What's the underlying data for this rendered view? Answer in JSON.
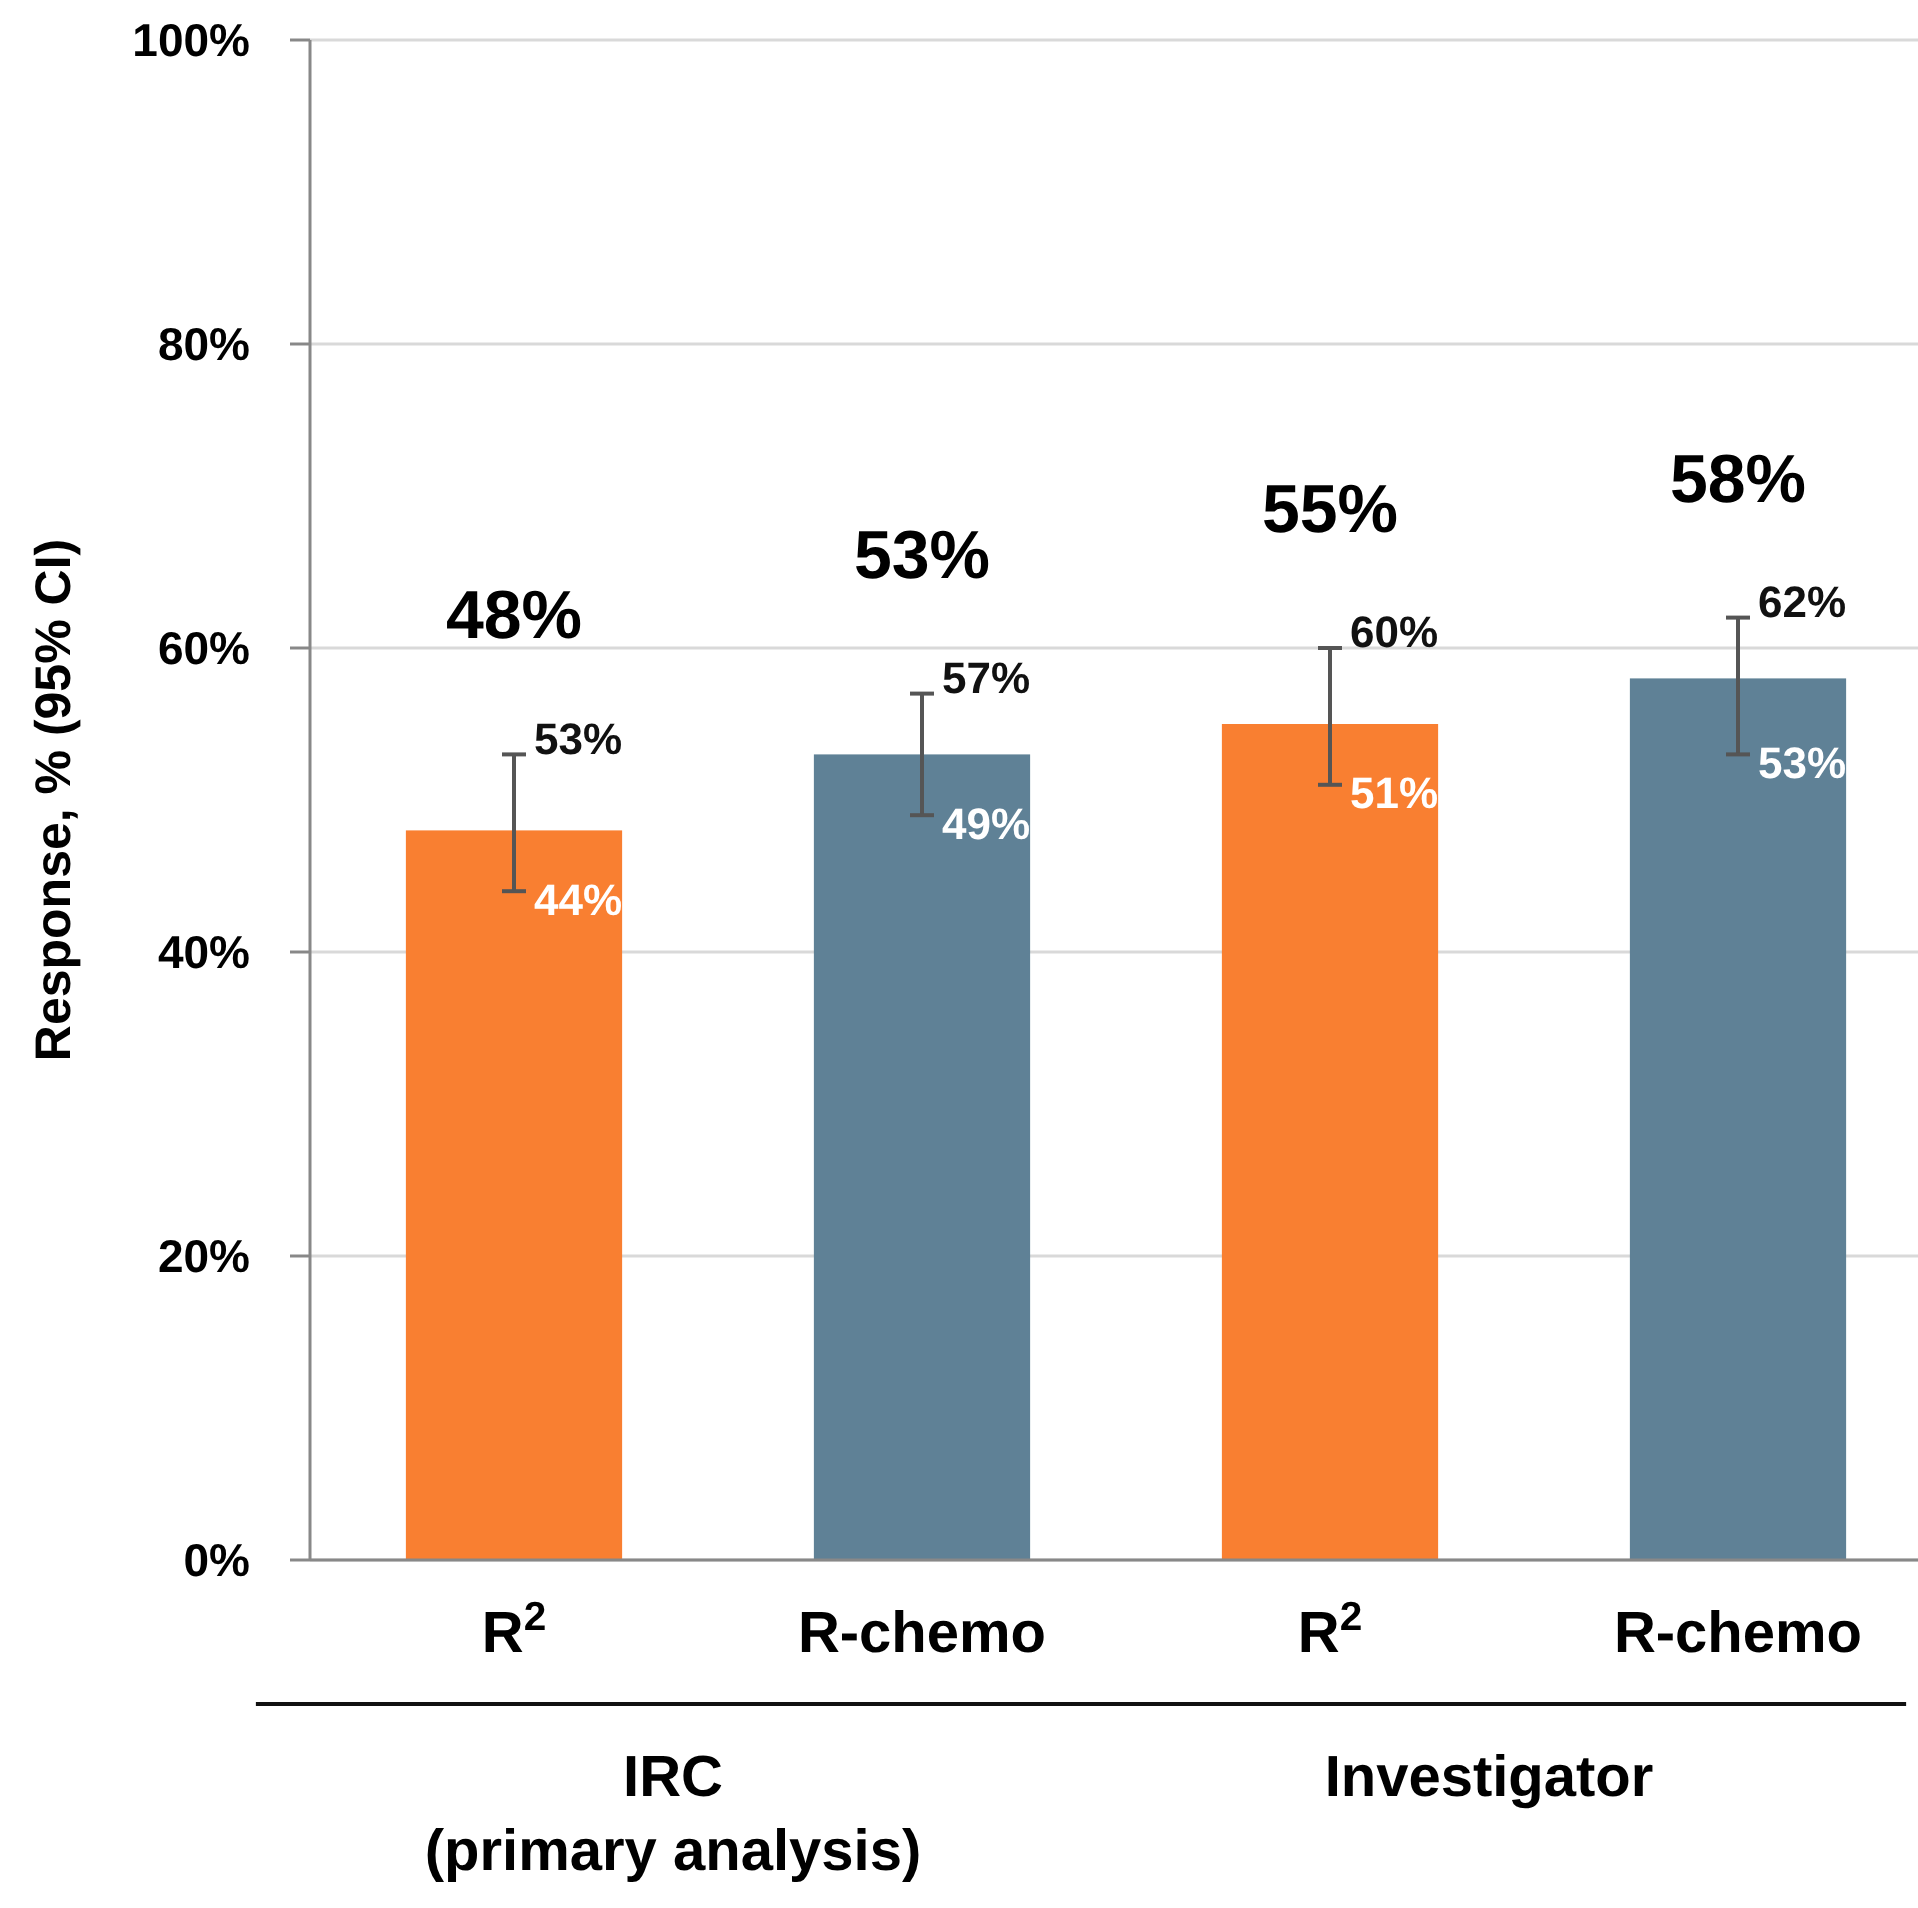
{
  "chart_data": {
    "type": "bar",
    "ylabel": "Response, % (95% CI)",
    "categories": [
      "R$^{2}$",
      "R-chemo",
      "R$^{2}$",
      "R-chemo"
    ],
    "values": [
      48,
      53,
      55,
      58
    ],
    "colors": [
      "#f97f31",
      "#5f8196",
      "#f97f31",
      "#5f8196"
    ],
    "errors": [
      [
        44,
        53
      ],
      [
        49,
        57
      ],
      [
        51,
        60
      ],
      [
        53,
        62
      ]
    ],
    "value_labels": [
      "48%",
      "53%",
      "55%",
      "58%"
    ],
    "ylim": [
      0,
      100
    ],
    "yticks": [
      {
        "value": 0,
        "label": "0%"
      },
      {
        "value": 20,
        "label": "20%"
      },
      {
        "value": 40,
        "label": "40%"
      },
      {
        "value": 60,
        "label": "60%"
      },
      {
        "value": 80,
        "label": "80%"
      },
      {
        "value": 100,
        "label": "100%"
      }
    ],
    "grid": "y",
    "annotations": [
      "44%",
      "53%",
      "49%",
      "57%",
      "51%",
      "60%",
      "53%",
      "62%",
      "IRC\n(primary analysis)",
      "Investigator"
    ]
  }
}
